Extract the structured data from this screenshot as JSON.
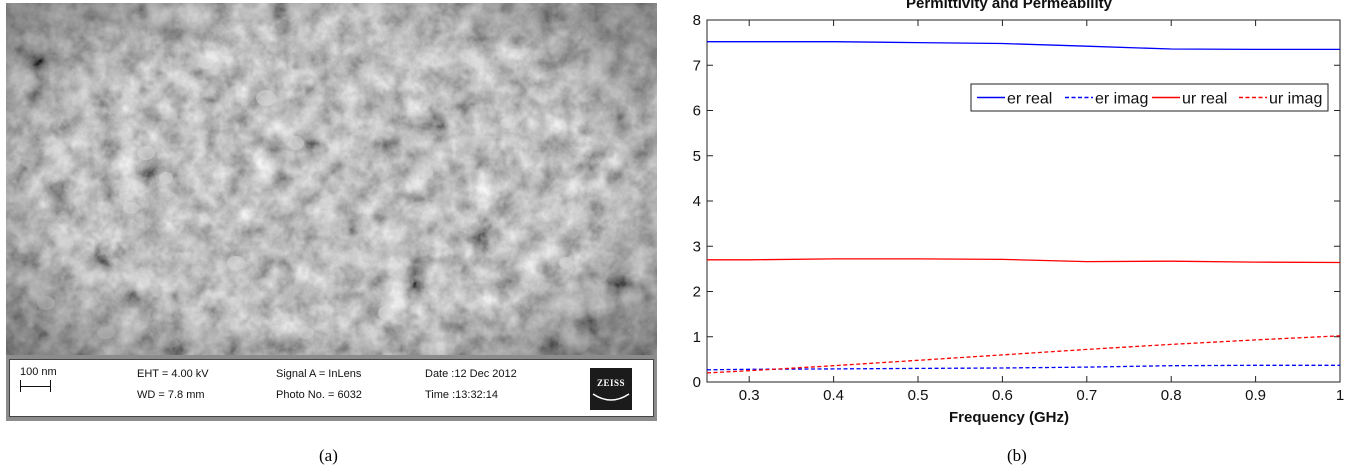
{
  "panel_a": {
    "label": "(a)",
    "scale_bar": "100 nm",
    "eht": "EHT =  4.00 kV",
    "wd": "WD =  7.8 mm",
    "signal": "Signal A = InLens",
    "photo": "Photo No. = 6032",
    "date": "Date :12 Dec 2012",
    "time": "Time :13:32:14",
    "logo": "ZEISS"
  },
  "panel_b": {
    "label": "(b)"
  },
  "chart_data": {
    "type": "line",
    "title": "Permittivity and Permeability",
    "xlabel": "Frequency (GHz)",
    "ylabel": "",
    "xlim": [
      0.25,
      1.0
    ],
    "ylim": [
      0,
      8
    ],
    "xticks": [
      0.3,
      0.4,
      0.5,
      0.6,
      0.7,
      0.8,
      0.9,
      1
    ],
    "xtick_labels": [
      "0.3",
      "0.4",
      "0.5",
      "0.6",
      "0.7",
      "0.8",
      "0.9",
      "1"
    ],
    "yticks": [
      0,
      1,
      2,
      3,
      4,
      5,
      6,
      7,
      8
    ],
    "ytick_labels": [
      "0",
      "1",
      "2",
      "3",
      "4",
      "5",
      "6",
      "7",
      "8"
    ],
    "grid": false,
    "legend_position": "top-right",
    "x": [
      0.25,
      0.3,
      0.4,
      0.5,
      0.6,
      0.7,
      0.8,
      0.9,
      1.0
    ],
    "series": [
      {
        "name": "er real",
        "color": "#0000ff",
        "dash": "solid",
        "values": [
          7.52,
          7.52,
          7.52,
          7.5,
          7.48,
          7.42,
          7.36,
          7.35,
          7.35
        ]
      },
      {
        "name": "er imag",
        "color": "#0000ff",
        "dash": "dashed",
        "values": [
          0.27,
          0.28,
          0.29,
          0.3,
          0.31,
          0.33,
          0.36,
          0.37,
          0.37
        ]
      },
      {
        "name": "ur real",
        "color": "#ff0000",
        "dash": "solid",
        "values": [
          2.7,
          2.7,
          2.72,
          2.72,
          2.71,
          2.66,
          2.67,
          2.65,
          2.64
        ]
      },
      {
        "name": "ur imag",
        "color": "#ff0000",
        "dash": "dashed",
        "values": [
          0.2,
          0.25,
          0.36,
          0.48,
          0.6,
          0.72,
          0.83,
          0.93,
          1.02
        ]
      }
    ]
  }
}
